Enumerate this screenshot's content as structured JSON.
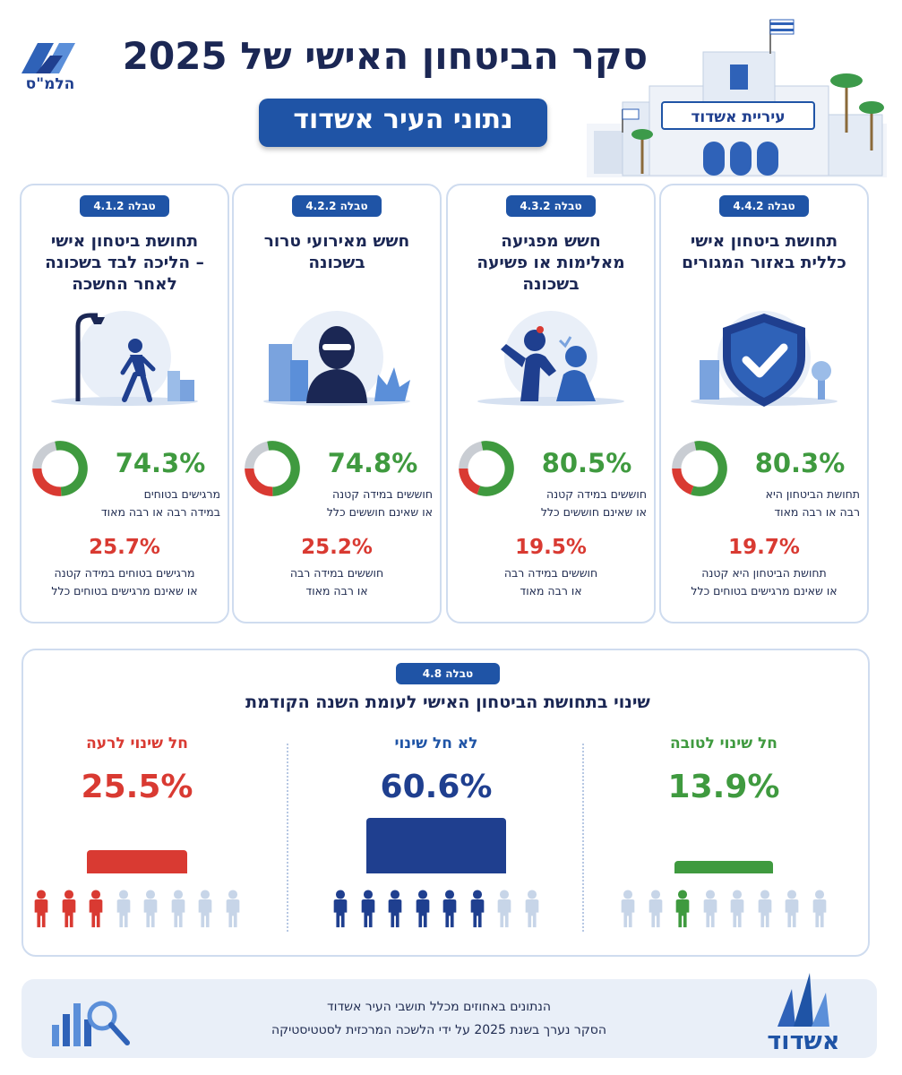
{
  "header": {
    "title": "סקר הביטחון האישי של 2025",
    "badge": "נתוני העיר אשדוד",
    "logo_text": "הלמ\"ס",
    "building_sign": "עיריית אשדוד"
  },
  "cards": [
    {
      "tag": "טבלה 4.4.2",
      "title_lines": [
        "תחושת ביטחון אישי",
        "כללית באזור המגורים"
      ],
      "icon": "shield-check-icon",
      "main_pct": "80.3%",
      "main_lines": [
        "תחושת הביטחון היא",
        "רבה או רבה מאוד"
      ],
      "second_pct": "19.7%",
      "second_lines": [
        "תחושת הביטחון היא קטנה",
        "או שאינם מרגישים בטוחים כלל"
      ]
    },
    {
      "tag": "טבלה 4.3.2",
      "title_lines": [
        "חשש מפגיעה",
        "מאלימות או פשיעה",
        "בשכונה"
      ],
      "icon": "violence-icon",
      "main_pct": "80.5%",
      "main_lines": [
        "חוששים במידה קטנה",
        "או שאינם חוששים כלל"
      ],
      "second_pct": "19.5%",
      "second_lines": [
        "חוששים במידה רבה",
        "או רבה מאוד"
      ]
    },
    {
      "tag": "טבלה 4.2.2",
      "title_lines": [
        "חשש מאירועי טרור",
        "בשכונה"
      ],
      "icon": "terror-icon",
      "main_pct": "74.8%",
      "main_lines": [
        "חוששים במידה קטנה",
        "או שאינם חוששים כלל"
      ],
      "second_pct": "25.2%",
      "second_lines": [
        "חוששים במידה רבה",
        "או רבה מאוד"
      ]
    },
    {
      "tag": "טבלה 4.1.2",
      "title_lines": [
        "תחושת ביטחון אישי",
        "– הליכה לבד בשכונה",
        "לאחר החשכה"
      ],
      "icon": "walking-at-night-icon",
      "main_pct": "74.3%",
      "main_lines": [
        "מרגישים בטוחים",
        "במידה רבה או רבה מאוד"
      ],
      "second_pct": "25.7%",
      "second_lines": [
        "מרגישים בטוחים במידה קטנה",
        "או שאינם מרגישים בטוחים כלל"
      ]
    }
  ],
  "change_panel": {
    "tag": "טבלה 4.8",
    "title": "שינוי בתחושת הביטחון האישי לעומת השנה הקודמת"
  },
  "chart_data": [
    {
      "type": "pie",
      "title": "תחושת ביטחון אישי כללית באזור המגורים",
      "slices": [
        {
          "value": 80.3,
          "color": "#3f9a3f"
        },
        {
          "value": 19.7,
          "color": "#d93a32"
        }
      ]
    },
    {
      "type": "pie",
      "title": "חשש מפגיעה מאלימות או פשיעה בשכונה",
      "slices": [
        {
          "value": 80.5,
          "color": "#3f9a3f"
        },
        {
          "value": 19.5,
          "color": "#d93a32"
        }
      ]
    },
    {
      "type": "pie",
      "title": "חשש מאירועי טרור בשכונה",
      "slices": [
        {
          "value": 74.8,
          "color": "#3f9a3f"
        },
        {
          "value": 25.2,
          "color": "#d93a32"
        }
      ]
    },
    {
      "type": "pie",
      "title": "תחושת ביטחון אישי – הליכה לבד בשכונה לאחר החשכה",
      "slices": [
        {
          "value": 74.3,
          "color": "#3f9a3f"
        },
        {
          "value": 25.7,
          "color": "#d93a32"
        }
      ]
    },
    {
      "type": "bar",
      "title": "שינוי בתחושת הביטחון האישי לעומת השנה הקודמת",
      "categories": [
        "חל שינוי לטובה",
        "לא חל שינוי",
        "חל שינוי לרעה"
      ],
      "values": [
        13.9,
        60.6,
        25.5
      ],
      "value_labels": [
        "13.9%",
        "60.6%",
        "25.5%"
      ],
      "colors": [
        "#3f9a3f",
        "#1f54a6",
        "#d93a32"
      ],
      "figures_highlighted": [
        1,
        6,
        3
      ],
      "figures_total": 8
    }
  ],
  "colors": {
    "navy": "#1b2754",
    "blue": "#1f54a6",
    "green": "#3f9a3f",
    "red": "#d93a32",
    "gray": "#c9cdd3",
    "light_figure": "#c7d5e8"
  },
  "footer": {
    "line1": "הנתונים באחוזים מכלל תושבי העיר אשדוד",
    "line2": "הסקר נערך בשנת 2025 על ידי הלשכה המרכזית לסטטיסטיקה",
    "city_logo_text": "אשדוד"
  }
}
